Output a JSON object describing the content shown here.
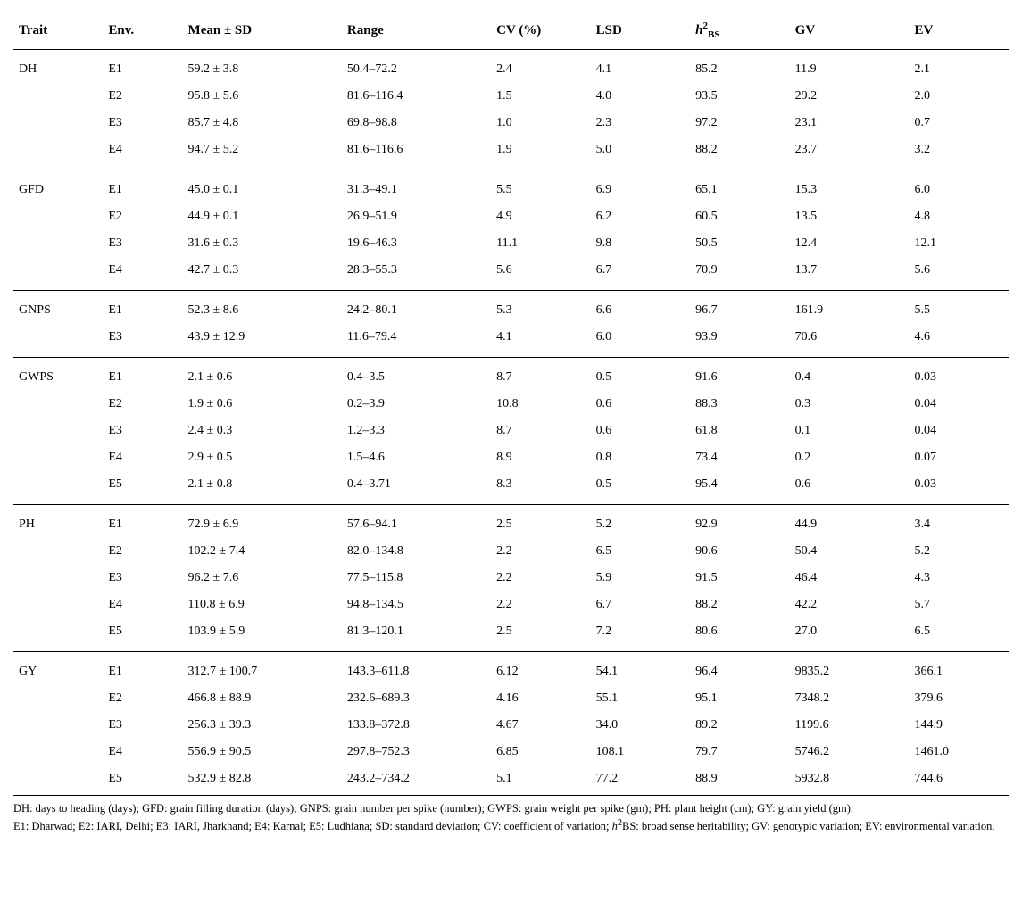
{
  "headers": {
    "trait": "Trait",
    "env": "Env.",
    "mean": "Mean ± SD",
    "range": "Range",
    "cv": "CV (%)",
    "lsd": "LSD",
    "gv": "GV",
    "ev": "EV"
  },
  "rows": [
    {
      "trait": "DH",
      "env": "E1",
      "mean": "59.2 ± 3.8",
      "range": "50.4–72.2",
      "cv": "2.4",
      "lsd": "4.1",
      "h2": "85.2",
      "gv": "11.9",
      "ev": "2.1",
      "gstart": true
    },
    {
      "trait": "",
      "env": "E2",
      "mean": "95.8 ± 5.6",
      "range": "81.6–116.4",
      "cv": "1.5",
      "lsd": "4.0",
      "h2": "93.5",
      "gv": "29.2",
      "ev": "2.0"
    },
    {
      "trait": "",
      "env": "E3",
      "mean": "85.7 ± 4.8",
      "range": "69.8–98.8",
      "cv": "1.0",
      "lsd": "2.3",
      "h2": "97.2",
      "gv": "23.1",
      "ev": "0.7"
    },
    {
      "trait": "",
      "env": "E4",
      "mean": "94.7 ± 5.2",
      "range": "81.6–116.6",
      "cv": "1.9",
      "lsd": "5.0",
      "h2": "88.2",
      "gv": "23.7",
      "ev": "3.2",
      "gend": true
    },
    {
      "trait": "GFD",
      "env": "E1",
      "mean": "45.0 ± 0.1",
      "range": "31.3–49.1",
      "cv": "5.5",
      "lsd": "6.9",
      "h2": "65.1",
      "gv": "15.3",
      "ev": "6.0",
      "gstart": true
    },
    {
      "trait": "",
      "env": "E2",
      "mean": "44.9 ± 0.1",
      "range": "26.9–51.9",
      "cv": "4.9",
      "lsd": "6.2",
      "h2": "60.5",
      "gv": "13.5",
      "ev": "4.8"
    },
    {
      "trait": "",
      "env": "E3",
      "mean": "31.6 ± 0.3",
      "range": "19.6–46.3",
      "cv": "11.1",
      "lsd": "9.8",
      "h2": "50.5",
      "gv": "12.4",
      "ev": "12.1"
    },
    {
      "trait": "",
      "env": "E4",
      "mean": "42.7 ± 0.3",
      "range": "28.3–55.3",
      "cv": "5.6",
      "lsd": "6.7",
      "h2": "70.9",
      "gv": "13.7",
      "ev": "5.6",
      "gend": true
    },
    {
      "trait": "GNPS",
      "env": "E1",
      "mean": "52.3 ± 8.6",
      "range": "24.2–80.1",
      "cv": "5.3",
      "lsd": "6.6",
      "h2": "96.7",
      "gv": "161.9",
      "ev": "5.5",
      "gstart": true
    },
    {
      "trait": "",
      "env": "E3",
      "mean": "43.9 ± 12.9",
      "range": "11.6–79.4",
      "cv": "4.1",
      "lsd": "6.0",
      "h2": "93.9",
      "gv": "70.6",
      "ev": "4.6",
      "gend": true
    },
    {
      "trait": "GWPS",
      "env": "E1",
      "mean": "2.1 ± 0.6",
      "range": "0.4–3.5",
      "cv": "8.7",
      "lsd": "0.5",
      "h2": "91.6",
      "gv": "0.4",
      "ev": "0.03",
      "gstart": true
    },
    {
      "trait": "",
      "env": "E2",
      "mean": "1.9 ± 0.6",
      "range": "0.2–3.9",
      "cv": "10.8",
      "lsd": "0.6",
      "h2": "88.3",
      "gv": "0.3",
      "ev": "0.04"
    },
    {
      "trait": "",
      "env": "E3",
      "mean": "2.4 ± 0.3",
      "range": "1.2–3.3",
      "cv": "8.7",
      "lsd": "0.6",
      "h2": "61.8",
      "gv": "0.1",
      "ev": "0.04"
    },
    {
      "trait": "",
      "env": "E4",
      "mean": "2.9 ± 0.5",
      "range": "1.5–4.6",
      "cv": "8.9",
      "lsd": "0.8",
      "h2": "73.4",
      "gv": "0.2",
      "ev": "0.07"
    },
    {
      "trait": "",
      "env": "E5",
      "mean": "2.1 ± 0.8",
      "range": "0.4–3.71",
      "cv": "8.3",
      "lsd": "0.5",
      "h2": "95.4",
      "gv": "0.6",
      "ev": "0.03",
      "gend": true
    },
    {
      "trait": "PH",
      "env": "E1",
      "mean": "72.9 ± 6.9",
      "range": "57.6–94.1",
      "cv": "2.5",
      "lsd": "5.2",
      "h2": "92.9",
      "gv": "44.9",
      "ev": "3.4",
      "gstart": true
    },
    {
      "trait": "",
      "env": "E2",
      "mean": "102.2 ± 7.4",
      "range": "82.0–134.8",
      "cv": "2.2",
      "lsd": "6.5",
      "h2": "90.6",
      "gv": "50.4",
      "ev": "5.2"
    },
    {
      "trait": "",
      "env": "E3",
      "mean": "96.2 ± 7.6",
      "range": "77.5–115.8",
      "cv": "2.2",
      "lsd": "5.9",
      "h2": "91.5",
      "gv": "46.4",
      "ev": "4.3"
    },
    {
      "trait": "",
      "env": "E4",
      "mean": "110.8 ± 6.9",
      "range": "94.8–134.5",
      "cv": "2.2",
      "lsd": "6.7",
      "h2": "88.2",
      "gv": "42.2",
      "ev": "5.7"
    },
    {
      "trait": "",
      "env": "E5",
      "mean": "103.9 ± 5.9",
      "range": "81.3–120.1",
      "cv": "2.5",
      "lsd": "7.2",
      "h2": "80.6",
      "gv": "27.0",
      "ev": "6.5",
      "gend": true
    },
    {
      "trait": "GY",
      "env": "E1",
      "mean": "312.7 ± 100.7",
      "range": "143.3–611.8",
      "cv": "6.12",
      "lsd": "54.1",
      "h2": "96.4",
      "gv": "9835.2",
      "ev": "366.1",
      "gstart": true
    },
    {
      "trait": "",
      "env": "E2",
      "mean": "466.8 ± 88.9",
      "range": "232.6–689.3",
      "cv": "4.16",
      "lsd": "55.1",
      "h2": "95.1",
      "gv": "7348.2",
      "ev": "379.6"
    },
    {
      "trait": "",
      "env": "E3",
      "mean": "256.3 ± 39.3",
      "range": "133.8–372.8",
      "cv": "4.67",
      "lsd": "34.0",
      "h2": "89.2",
      "gv": "1199.6",
      "ev": "144.9"
    },
    {
      "trait": "",
      "env": "E4",
      "mean": "556.9 ± 90.5",
      "range": "297.8–752.3",
      "cv": "6.85",
      "lsd": "108.1",
      "h2": "79.7",
      "gv": "5746.2",
      "ev": "1461.0"
    },
    {
      "trait": "",
      "env": "E5",
      "mean": "532.9 ± 82.8",
      "range": "243.2–734.2",
      "cv": "5.1",
      "lsd": "77.2",
      "h2": "88.9",
      "gv": "5932.8",
      "ev": "744.6"
    }
  ],
  "footnotes": {
    "line1": "DH: days to heading (days); GFD: grain filling duration (days); GNPS: grain number per spike (number); GWPS: grain weight per spike (gm); PH: plant height (cm); GY: grain yield (gm).",
    "line2_a": "E1: Dharwad; E2: IARI, Delhi; E3: IARI, Jharkhand; E4: Karnal; E5: Ludhiana; SD: standard deviation; CV: coefficient of variation; ",
    "line2_b": "BS: broad sense heritability; GV: genotypic variation; EV: environmental variation."
  }
}
